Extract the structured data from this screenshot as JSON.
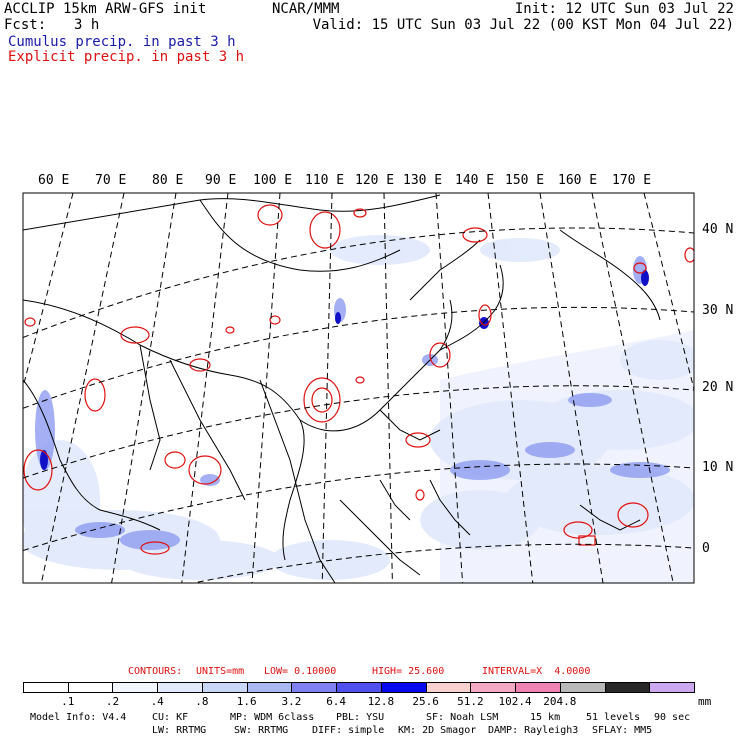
{
  "header": {
    "model": "ACCLIP 15km ARW-GFS init",
    "center": "NCAR/MMM",
    "init": "Init: 12 UTC Sun 03 Jul 22",
    "fcst_label": "Fcst:",
    "fcst_value": "3 h",
    "valid": "Valid: 15 UTC Sun 03 Jul 22 (00 KST Mon 04 Jul 22)",
    "legend_cumulus": "Cumulus precip. in past 3 h",
    "legend_explicit": "Explicit precip. in past 3 h"
  },
  "colors": {
    "cumulus": "#1a1aa8",
    "explicit": "#e01010"
  },
  "map": {
    "lon_labels": [
      "60 E",
      "70 E",
      "80 E",
      "90 E",
      "100 E",
      "110 E",
      "120 E",
      "130 E",
      "140 E",
      "150 E",
      "160 E",
      "170 E"
    ],
    "lat_labels": [
      "40 N",
      "30 N",
      "20 N",
      "10 N",
      "0"
    ]
  },
  "contours": {
    "title": "CONTOURS:",
    "units": "UNITS=mm",
    "low": "LOW= 0.10000",
    "high": "HIGH= 25.600",
    "interval": "INTERVAL=X  4.0000"
  },
  "colorbar": {
    "labels": [
      ".1",
      ".2",
      ".4",
      ".8",
      "1.6",
      "3.2",
      "6.4",
      "12.8",
      "25.6",
      "51.2",
      "102.4",
      "204.8"
    ],
    "unit": "mm",
    "colors": [
      "#ffffff",
      "#ffffff",
      "#f2f6ff",
      "#e2ebfa",
      "#c9d6f6",
      "#aab8f2",
      "#8080f0",
      "#5050ee",
      "#0808ee",
      "#f7d0d0",
      "#f3a8c4",
      "#ee84b4",
      "#b8b8b8",
      "#282828",
      "#cba8f0"
    ]
  },
  "footer": {
    "line1": [
      "Model Info: V4.4",
      "CU: KF",
      "MP: WDM 6class",
      "PBL: YSU",
      "SF: Noah LSM",
      "15 km",
      "51 levels",
      "90 sec"
    ],
    "line2": [
      "LW: RRTMG",
      "SW: RRTMG",
      "DIFF: simple",
      "KM: 2D Smagor",
      "DAMP: Rayleigh3",
      "SFLAY: MM5"
    ]
  }
}
